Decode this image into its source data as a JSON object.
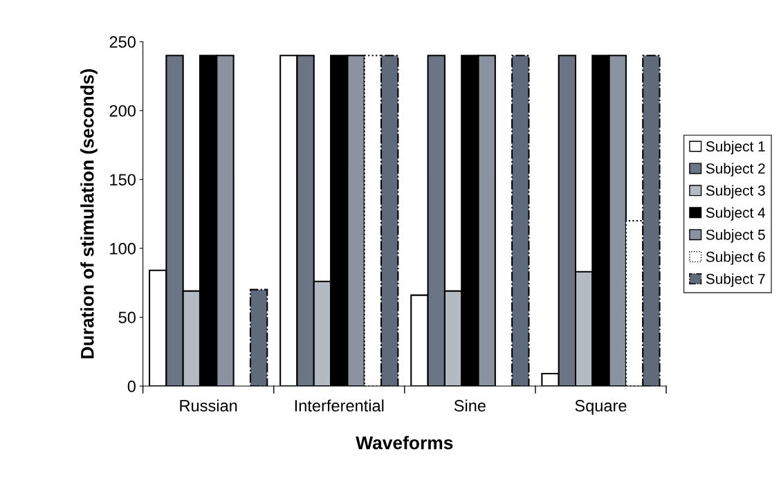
{
  "chart_data": {
    "type": "bar",
    "xlabel": "Waveforms",
    "ylabel": "Duration of stimulation (seconds)",
    "categories": [
      "Russian",
      "Interferential",
      "Sine",
      "Square"
    ],
    "series": [
      {
        "name": "Subject 1",
        "color": "#ffffff",
        "values": [
          84,
          240,
          66,
          9
        ]
      },
      {
        "name": "Subject 2",
        "color": "#6b7585",
        "values": [
          240,
          240,
          240,
          240
        ]
      },
      {
        "name": "Subject 3",
        "color": "#b4bac2",
        "values": [
          69,
          76,
          69,
          83
        ]
      },
      {
        "name": "Subject 4",
        "color": "#000000",
        "values": [
          240,
          240,
          240,
          240
        ]
      },
      {
        "name": "Subject 5",
        "color": "#8a939f",
        "values": [
          240,
          240,
          240,
          240
        ]
      },
      {
        "name": "Subject 6",
        "color": "#ffffff",
        "line_style": "dotted",
        "values": [
          null,
          240,
          null,
          120
        ]
      },
      {
        "name": "Subject 7",
        "color": "#5f6b7a",
        "line_style": "dashed",
        "values": [
          70,
          240,
          240,
          240
        ]
      }
    ],
    "ylim": [
      0,
      250
    ],
    "yticks": [
      0,
      50,
      100,
      150,
      200,
      250
    ],
    "grid": false,
    "legend": "right"
  }
}
